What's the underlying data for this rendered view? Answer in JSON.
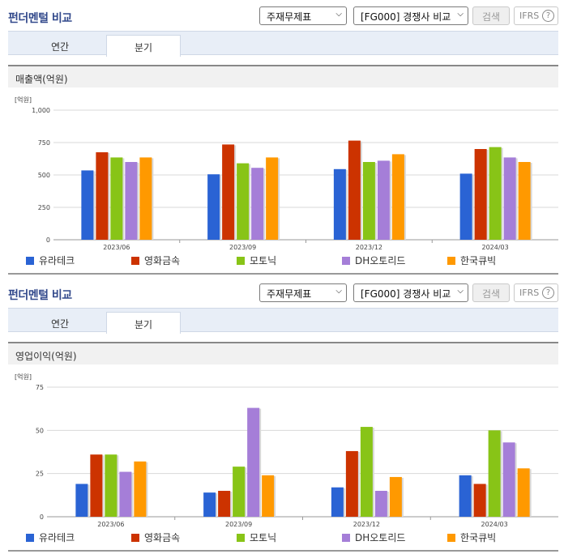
{
  "panels": [
    {
      "title": "펀더멘털 비교",
      "select_statement": "주재무제표",
      "select_group": "[FG000] 경쟁사 비교",
      "search_label": "검색",
      "ifrs_label": "IFRS",
      "help_glyph": "?",
      "tabs": [
        {
          "label": "연간"
        },
        {
          "label": "분기"
        }
      ],
      "active_tab": 1,
      "subheader": "매출액(억원)"
    },
    {
      "title": "펀더멘털 비교",
      "select_statement": "주재무제표",
      "select_group": "[FG000] 경쟁사 비교",
      "search_label": "검색",
      "ifrs_label": "IFRS",
      "help_glyph": "?",
      "tabs": [
        {
          "label": "연간"
        },
        {
          "label": "분기"
        }
      ],
      "active_tab": 1,
      "subheader": "영업이익(억원)"
    }
  ],
  "colors": {
    "series": [
      "#2a63d4",
      "#cc3300",
      "#88c417",
      "#a57ed8",
      "#ff9900"
    ],
    "title": "#334a8c",
    "tab_bar": "#e8eef7",
    "grid": "#d9d9d9"
  },
  "icons": [
    "chevron-down-icon",
    "help-circle-icon"
  ],
  "chart_data": [
    {
      "type": "bar",
      "unit_label": "[억원]",
      "categories": [
        "2023/06",
        "2023/09",
        "2023/12",
        "2024/03"
      ],
      "ylim": [
        0,
        1000
      ],
      "yticks": [
        0,
        250,
        500,
        750,
        1000
      ],
      "ytick_labels": [
        "0",
        "250",
        "500",
        "750",
        "1,000"
      ],
      "grid": true,
      "legend": "bottom",
      "series": [
        {
          "name": "유라테크",
          "values": [
            535,
            505,
            545,
            510
          ]
        },
        {
          "name": "영화금속",
          "values": [
            675,
            735,
            765,
            700
          ]
        },
        {
          "name": "모토닉",
          "values": [
            635,
            590,
            600,
            715
          ]
        },
        {
          "name": "DH오토리드",
          "values": [
            600,
            555,
            610,
            635
          ]
        },
        {
          "name": "한국큐빅",
          "values": [
            635,
            635,
            660,
            600
          ]
        }
      ]
    },
    {
      "type": "bar",
      "unit_label": "[억원]",
      "categories": [
        "2023/06",
        "2023/09",
        "2023/12",
        "2024/03"
      ],
      "ylim": [
        0,
        75
      ],
      "yticks": [
        0,
        25,
        50,
        75
      ],
      "ytick_labels": [
        "0",
        "25",
        "50",
        "75"
      ],
      "grid": true,
      "legend": "bottom",
      "series": [
        {
          "name": "유라테크",
          "values": [
            19,
            14,
            17,
            24
          ]
        },
        {
          "name": "영화금속",
          "values": [
            36,
            15,
            38,
            19
          ]
        },
        {
          "name": "모토닉",
          "values": [
            36,
            29,
            52,
            50
          ]
        },
        {
          "name": "DH오토리드",
          "values": [
            26,
            63,
            15,
            43
          ]
        },
        {
          "name": "한국큐빅",
          "values": [
            32,
            24,
            23,
            28
          ]
        }
      ]
    }
  ]
}
